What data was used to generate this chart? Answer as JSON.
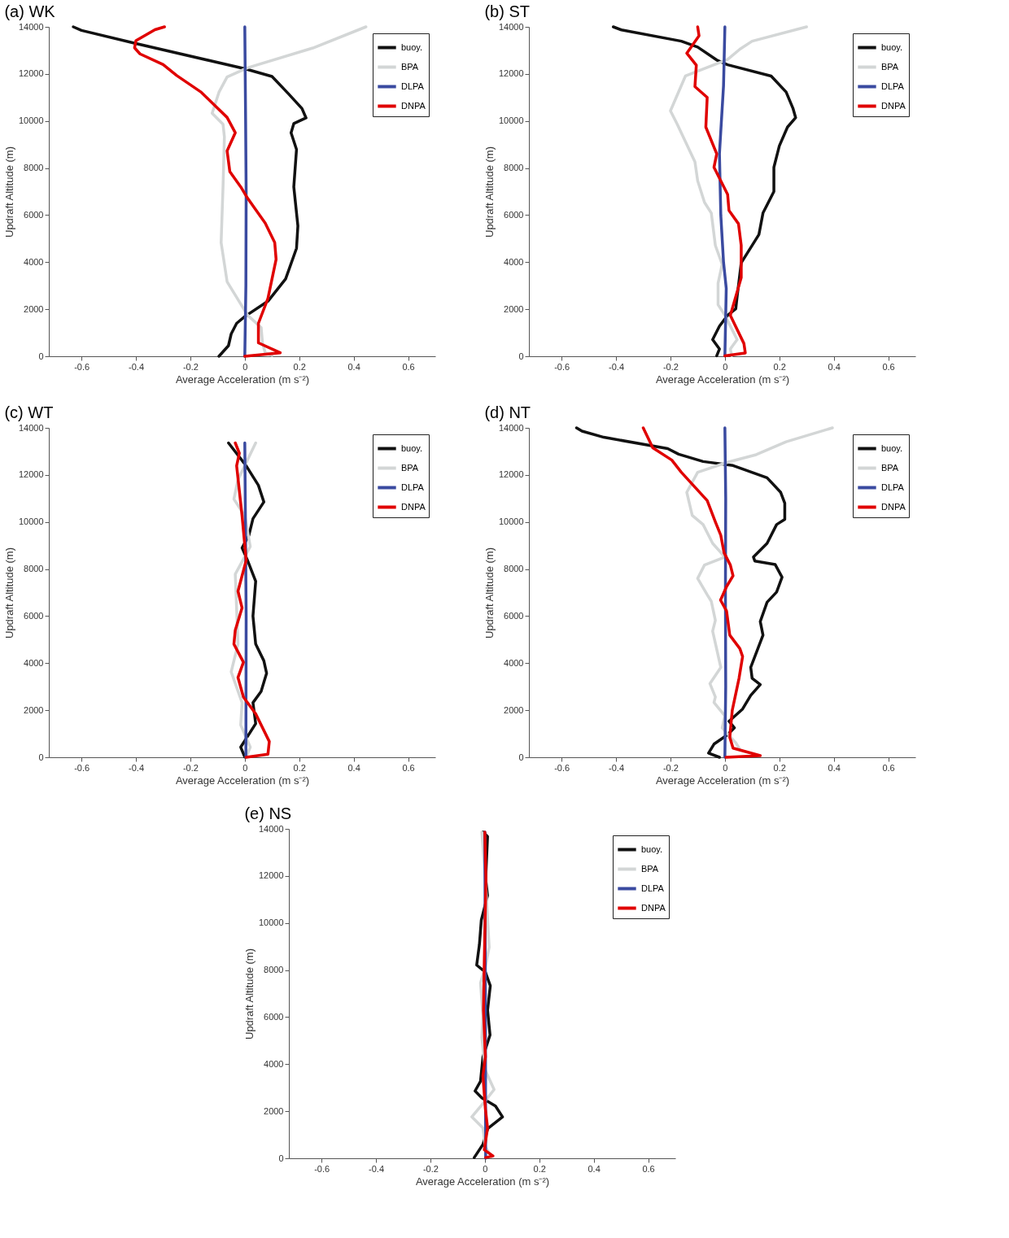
{
  "chart_data": [
    {
      "type": "line",
      "title": "(a) WK",
      "xlabel": "Average Acceleration (m s⁻²)",
      "ylabel": "Updraft Altitude (m)",
      "xlim": [
        -0.72,
        0.7
      ],
      "ylim": [
        0,
        14000
      ],
      "xticks": [
        -0.6,
        -0.4,
        -0.2,
        0,
        0.2,
        0.4,
        0.6
      ],
      "yticks": [
        0,
        2000,
        4000,
        6000,
        8000,
        10000,
        12000,
        14000
      ],
      "legend": "top right",
      "grid": false,
      "series": [
        {
          "name": "buoy.",
          "color": "#111111",
          "x": [
            -0.63,
            -0.6,
            -0.4,
            0,
            0.1,
            0.16,
            0.21,
            0.225,
            0.18,
            0.17,
            0.19,
            0.18,
            0.195,
            0.19,
            0.15,
            0.085,
            0,
            -0.03,
            -0.05,
            -0.06,
            -0.095
          ],
          "values": [
            14000,
            13850,
            13290,
            12220,
            11890,
            11160,
            10530,
            10130,
            9890,
            9500,
            8790,
            7200,
            5540,
            4590,
            3290,
            2340,
            1690,
            1400,
            950,
            450,
            0
          ]
        },
        {
          "name": "BPA",
          "color": "#d3d6d6",
          "x": [
            0.445,
            0.25,
            0.01,
            -0.065,
            -0.095,
            -0.12,
            -0.08,
            -0.075,
            -0.08,
            -0.087,
            -0.065,
            0.01,
            0.06,
            0.065,
            0.075,
            0.1
          ],
          "values": [
            14000,
            13100,
            12260,
            11870,
            11220,
            10330,
            9860,
            9330,
            7200,
            4830,
            3170,
            1750,
            1220,
            570,
            150,
            40
          ]
        },
        {
          "name": "DLPA",
          "color": "#3a4aa0",
          "x": [
            0,
            0.003,
            0.005,
            0.004,
            0
          ],
          "values": [
            14000,
            10000,
            7000,
            3000,
            0
          ]
        },
        {
          "name": "DNPA",
          "color": "#e00000",
          "x": [
            -0.295,
            -0.33,
            -0.4,
            -0.405,
            -0.385,
            -0.3,
            -0.25,
            -0.16,
            -0.065,
            -0.035,
            -0.065,
            -0.055,
            -0.015,
            0.01,
            0.075,
            0.11,
            0.115,
            0.085,
            0.05,
            0.05,
            0.13,
            0
          ],
          "values": [
            14000,
            13880,
            13410,
            13110,
            12850,
            12400,
            11930,
            11220,
            10150,
            9500,
            8730,
            7850,
            7200,
            6720,
            5660,
            4830,
            4120,
            2460,
            1400,
            570,
            150,
            0
          ]
        }
      ]
    },
    {
      "type": "line",
      "title": "(b) ST",
      "xlabel": "Average Acceleration (m s⁻²)",
      "ylabel": "Updraft Altitude (m)",
      "xlim": [
        -0.72,
        0.7
      ],
      "ylim": [
        0,
        14000
      ],
      "xticks": [
        -0.6,
        -0.4,
        -0.2,
        0,
        0.2,
        0.4,
        0.6
      ],
      "yticks": [
        0,
        2000,
        4000,
        6000,
        8000,
        10000,
        12000,
        14000
      ],
      "legend": "top right",
      "grid": false,
      "series": [
        {
          "name": "buoy.",
          "color": "#111111",
          "x": [
            -0.41,
            -0.38,
            -0.16,
            -0.1,
            -0.03,
            0.01,
            0.17,
            0.225,
            0.25,
            0.26,
            0.23,
            0.2,
            0.18,
            0.18,
            0.14,
            0.125,
            0.06,
            0.045,
            0.04,
            0.01,
            -0.02,
            -0.045,
            -0.02,
            -0.03
          ],
          "values": [
            14000,
            13870,
            13390,
            13140,
            12590,
            12390,
            11910,
            11230,
            10540,
            10140,
            9740,
            8940,
            8030,
            7000,
            6090,
            5170,
            3970,
            2540,
            2020,
            1740,
            1280,
            710,
            310,
            20
          ]
        },
        {
          "name": "BPA",
          "color": "#d3d6d6",
          "x": [
            0.3,
            0.1,
            0.055,
            0.01,
            -0.145,
            -0.2,
            -0.175,
            -0.11,
            -0.1,
            -0.075,
            -0.05,
            -0.035,
            -0.01,
            -0.025,
            -0.025,
            0,
            0.045,
            0.02,
            0.025
          ],
          "values": [
            14000,
            13390,
            13050,
            12610,
            11910,
            10430,
            9860,
            8260,
            7460,
            6540,
            6090,
            4710,
            3910,
            3110,
            2190,
            1740,
            710,
            310,
            20
          ]
        },
        {
          "name": "DLPA",
          "color": "#3a4aa0",
          "x": [
            0,
            -0.005,
            -0.02,
            -0.015,
            -0.005,
            0.005,
            0
          ],
          "values": [
            14000,
            11500,
            8600,
            6000,
            4000,
            2880,
            20
          ]
        },
        {
          "name": "DNPA",
          "color": "#e00000",
          "x": [
            -0.1,
            -0.095,
            -0.14,
            -0.105,
            -0.11,
            -0.065,
            -0.07,
            -0.03,
            -0.04,
            0.01,
            0.015,
            0.05,
            0.06,
            0.06,
            0.02,
            0.07,
            0.075,
            0
          ],
          "values": [
            14000,
            13620,
            12880,
            12370,
            11460,
            11000,
            9740,
            8600,
            8030,
            6880,
            6200,
            5630,
            4710,
            3340,
            1740,
            540,
            140,
            20
          ]
        }
      ]
    },
    {
      "type": "line",
      "title": "(c) WT",
      "xlabel": "Average Acceleration (m s⁻²)",
      "ylabel": "Updraft Altitude (m)",
      "xlim": [
        -0.72,
        0.7
      ],
      "ylim": [
        0,
        14000
      ],
      "xticks": [
        -0.6,
        -0.4,
        -0.2,
        0,
        0.2,
        0.4,
        0.6
      ],
      "yticks": [
        0,
        2000,
        4000,
        6000,
        8000,
        10000,
        12000,
        14000
      ],
      "legend": "top right",
      "grid": false,
      "series": [
        {
          "name": "buoy.",
          "color": "#111111",
          "x": [
            -0.06,
            0.005,
            0.05,
            0.07,
            0.03,
            0.015,
            -0.01,
            0.01,
            0.04,
            0.03,
            0.04,
            0.07,
            0.08,
            0.06,
            0.03,
            0.04,
            -0.015,
            0
          ],
          "values": [
            13360,
            12390,
            11560,
            10850,
            10140,
            9430,
            8900,
            8370,
            7480,
            6000,
            4810,
            4100,
            3570,
            2800,
            2320,
            1430,
            430,
            10
          ]
        },
        {
          "name": "BPA",
          "color": "#d3d6d6",
          "x": [
            0.04,
            -0.025,
            -0.04,
            0,
            0.02,
            -0.035,
            -0.025,
            -0.05,
            -0.01,
            -0.015,
            0.02,
            0.005
          ],
          "values": [
            13360,
            11800,
            10970,
            10260,
            8960,
            7780,
            4810,
            3630,
            2320,
            1370,
            430,
            10
          ]
        },
        {
          "name": "DLPA",
          "color": "#3a4aa0",
          "x": [
            0,
            0.003,
            0.005,
            0.004
          ],
          "values": [
            13360,
            9000,
            6000,
            10
          ]
        },
        {
          "name": "DNPA",
          "color": "#e00000",
          "x": [
            -0.035,
            -0.02,
            -0.03,
            -0.01,
            0.005,
            -0.025,
            -0.01,
            -0.035,
            -0.04,
            -0.005,
            -0.025,
            -0.005,
            0.04,
            0.09,
            0.085,
            0.005
          ],
          "values": [
            13360,
            12920,
            12390,
            10260,
            8370,
            7060,
            6350,
            5400,
            4810,
            4040,
            3390,
            2560,
            1850,
            670,
            130,
            0
          ]
        }
      ]
    },
    {
      "type": "line",
      "title": "(d) NT",
      "xlabel": "Average Acceleration (m s⁻²)",
      "ylabel": "Updraft Altitude (m)",
      "xlim": [
        -0.72,
        0.7
      ],
      "ylim": [
        0,
        14000
      ],
      "xticks": [
        -0.6,
        -0.4,
        -0.2,
        0,
        0.2,
        0.4,
        0.6
      ],
      "yticks": [
        0,
        2000,
        4000,
        6000,
        8000,
        10000,
        12000,
        14000
      ],
      "legend": "top right",
      "grid": false,
      "series": [
        {
          "name": "buoy.",
          "color": "#111111",
          "x": [
            -0.545,
            -0.525,
            -0.445,
            -0.21,
            -0.17,
            -0.08,
            0.03,
            0.155,
            0.205,
            0.22,
            0.22,
            0.19,
            0.155,
            0.105,
            0.11,
            0.185,
            0.21,
            0.19,
            0.155,
            0.13,
            0.14,
            0.095,
            0.1,
            0.13,
            0.095,
            0.065,
            0.015,
            0.035,
            0.01,
            -0.04,
            -0.06,
            -0.02
          ],
          "values": [
            14000,
            13860,
            13600,
            13120,
            12880,
            12570,
            12400,
            11880,
            11260,
            10800,
            10110,
            9890,
            9090,
            8510,
            8340,
            8190,
            7650,
            7020,
            6590,
            5770,
            5190,
            3820,
            3360,
            3090,
            2630,
            2050,
            1530,
            1250,
            960,
            560,
            180,
            0
          ]
        },
        {
          "name": "BPA",
          "color": "#d3d6d6",
          "x": [
            0.395,
            0.225,
            0.115,
            0.01,
            -0.1,
            -0.14,
            -0.12,
            -0.08,
            -0.045,
            0,
            -0.075,
            -0.1,
            -0.065,
            -0.05,
            -0.035,
            -0.045,
            -0.015,
            -0.055,
            -0.035,
            -0.04,
            0,
            -0.01,
            0.04,
            0.055
          ],
          "values": [
            14000,
            13410,
            12860,
            12540,
            12110,
            11260,
            10280,
            9890,
            9090,
            8510,
            8170,
            7600,
            6910,
            6630,
            5820,
            5360,
            3820,
            3130,
            2560,
            2330,
            1760,
            1250,
            620,
            330
          ]
        },
        {
          "name": "DLPA",
          "color": "#3a4aa0",
          "x": [
            0,
            0.003,
            0.002,
            0.003,
            0
          ],
          "values": [
            14000,
            11000,
            7000,
            3000,
            0
          ]
        },
        {
          "name": "DNPA",
          "color": "#e00000",
          "x": [
            -0.3,
            -0.265,
            -0.195,
            -0.16,
            -0.065,
            -0.035,
            -0.015,
            -0.003,
            0.02,
            0.03,
            0.006,
            -0.016,
            0.006,
            0.018,
            0.055,
            0.065,
            0.052,
            0.027,
            0.018,
            0.03,
            0.13,
            0.004
          ],
          "values": [
            14000,
            13150,
            12630,
            12110,
            10910,
            10000,
            9430,
            8690,
            8170,
            7710,
            7250,
            6680,
            6220,
            5190,
            4620,
            4280,
            3360,
            1990,
            850,
            390,
            70,
            0
          ]
        }
      ]
    },
    {
      "type": "line",
      "title": "(e) NS",
      "xlabel": "Average Acceleration (m s⁻²)",
      "ylabel": "Updraft Altitude (m)",
      "xlim": [
        -0.72,
        0.7
      ],
      "ylim": [
        0,
        14000
      ],
      "xticks": [
        -0.6,
        -0.4,
        -0.2,
        0,
        0.2,
        0.4,
        0.6
      ],
      "yticks": [
        0,
        2000,
        4000,
        6000,
        8000,
        10000,
        12000,
        14000
      ],
      "legend": "top right",
      "grid": false,
      "series": [
        {
          "name": "buoy.",
          "color": "#111111",
          "x": [
            -0.007,
            0.01,
            0.003,
            0.01,
            -0.013,
            -0.02,
            -0.03,
            0.002,
            0.02,
            0.01,
            0.019,
            -0.007,
            -0.016,
            -0.036,
            -0.011,
            0.039,
            0.065,
            0.011,
            -0.007,
            -0.039
          ],
          "values": [
            13870,
            13670,
            11870,
            11170,
            10120,
            9080,
            8210,
            7910,
            7330,
            6290,
            5240,
            4310,
            3270,
            2860,
            2570,
            2220,
            1760,
            1270,
            590,
            30
          ]
        },
        {
          "name": "BPA",
          "color": "#d3d6d6",
          "x": [
            -0.011,
            0.002,
            0.016,
            0.002,
            -0.016,
            -0.007,
            -0.011,
            0.002,
            0.034,
            0.002,
            -0.048,
            -0.007,
            0.002,
            0.025
          ],
          "values": [
            13860,
            11870,
            8970,
            8150,
            7450,
            6060,
            5130,
            3730,
            2920,
            2450,
            1760,
            1290,
            480,
            70
          ]
        },
        {
          "name": "DLPA",
          "color": "#3a4aa0",
          "x": [
            0,
            0.002,
            0.003
          ],
          "values": [
            13860,
            7000,
            0
          ]
        },
        {
          "name": "DNPA",
          "color": "#e00000",
          "x": [
            0,
            0.004,
            -0.002,
            -0.005,
            0.002,
            -0.007,
            0.002,
            0.01,
            -0.002,
            0.03,
            0.003
          ],
          "values": [
            13860,
            11870,
            8380,
            6290,
            4310,
            3510,
            2100,
            1290,
            360,
            100,
            30
          ]
        }
      ]
    }
  ]
}
